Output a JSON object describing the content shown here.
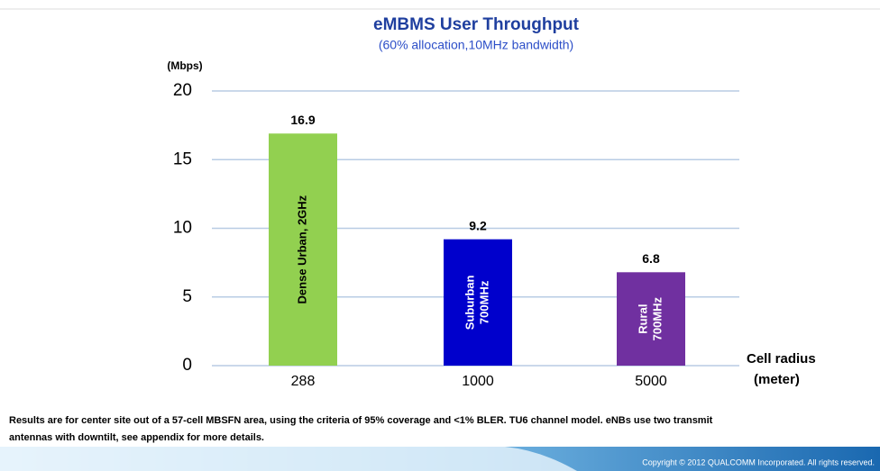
{
  "chart_data": {
    "type": "bar",
    "title": "eMBMS User Throughput",
    "subtitle": "(60% allocation,10MHz bandwidth)",
    "y_axis_label": "(Mbps)",
    "x_axis_label": [
      "Cell radius",
      "(meter)"
    ],
    "categories": [
      "288",
      "1000",
      "5000"
    ],
    "values": [
      16.9,
      9.2,
      6.8
    ],
    "colors": [
      "#92d050",
      "#0000cc",
      "#7030a0"
    ],
    "bar_labels": [
      [
        "Dense Urban, 2GHz"
      ],
      [
        "Suburban",
        "700MHz"
      ],
      [
        "Rural",
        "700MHz"
      ]
    ],
    "ylim": [
      0,
      20
    ],
    "yticks": [
      0,
      5,
      10,
      15,
      20
    ],
    "grid": true
  },
  "footnote": [
    "Results are for center site out of a 57-cell MBSFN area, using the criteria of 95% coverage and <1% BLER. TU6 channel model. eNBs use two transmit",
    "antennas with downtilt, see appendix for more details."
  ],
  "copyright": "Copyright © 2012 QUALCOMM Incorporated. All rights reserved."
}
